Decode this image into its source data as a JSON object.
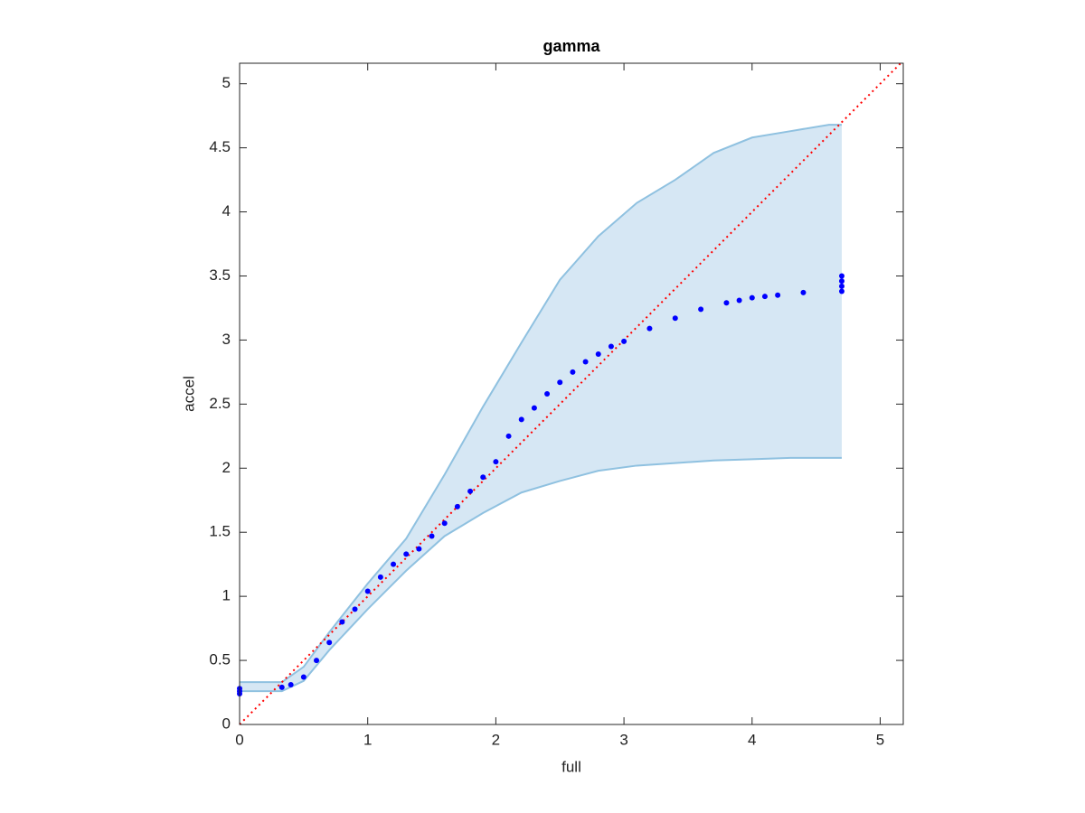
{
  "chart_data": {
    "type": "scatter",
    "title": "gamma",
    "x_label": "full",
    "y_label": "accel",
    "xlim": [
      0,
      5.18
    ],
    "ylim": [
      0,
      5.16
    ],
    "xticks": [
      0,
      1,
      2,
      3,
      4,
      5
    ],
    "yticks": [
      0,
      0.5,
      1,
      1.5,
      2,
      2.5,
      3,
      3.5,
      4,
      4.5,
      5
    ],
    "series": [
      {
        "color": "#0000ff",
        "x": [
          0,
          0,
          0,
          0.33,
          0.4,
          0.5,
          0.6,
          0.7,
          0.8,
          0.9,
          1.0,
          1.1,
          1.2,
          1.3,
          1.4,
          1.5,
          1.6,
          1.7,
          1.8,
          1.9,
          2.0,
          2.1,
          2.2,
          2.3,
          2.4,
          2.5,
          2.6,
          2.7,
          2.8,
          2.9,
          3.0,
          3.2,
          3.4,
          3.6,
          3.8,
          3.9,
          4.0,
          4.1,
          4.2,
          4.4,
          4.7,
          4.7,
          4.7,
          4.7
        ],
        "values": [
          0.24,
          0.26,
          0.28,
          0.29,
          0.31,
          0.37,
          0.5,
          0.64,
          0.8,
          0.9,
          1.04,
          1.15,
          1.25,
          1.33,
          1.37,
          1.47,
          1.57,
          1.7,
          1.82,
          1.93,
          2.05,
          2.25,
          2.38,
          2.47,
          2.58,
          2.67,
          2.75,
          2.83,
          2.89,
          2.95,
          2.99,
          3.09,
          3.17,
          3.24,
          3.29,
          3.31,
          3.33,
          3.34,
          3.35,
          3.37,
          3.38,
          3.42,
          3.46,
          3.5
        ]
      }
    ],
    "band": {
      "color": "#8fc1e0",
      "fill": "#d6e7f4",
      "x": [
        0,
        0.33,
        0.5,
        0.7,
        1.0,
        1.3,
        1.6,
        1.9,
        2.2,
        2.5,
        2.8,
        3.1,
        3.4,
        3.7,
        4.0,
        4.3,
        4.6,
        4.7
      ],
      "upper": [
        0.33,
        0.33,
        0.45,
        0.72,
        1.1,
        1.45,
        1.95,
        2.48,
        2.98,
        3.47,
        3.81,
        4.07,
        4.25,
        4.46,
        4.58,
        4.63,
        4.68,
        4.68
      ],
      "lower": [
        0.26,
        0.26,
        0.34,
        0.58,
        0.9,
        1.2,
        1.47,
        1.65,
        1.81,
        1.9,
        1.98,
        2.02,
        2.04,
        2.06,
        2.07,
        2.08,
        2.08,
        2.08
      ]
    },
    "reference_line": {
      "color": "#ff0000",
      "dash": "2,4"
    }
  }
}
